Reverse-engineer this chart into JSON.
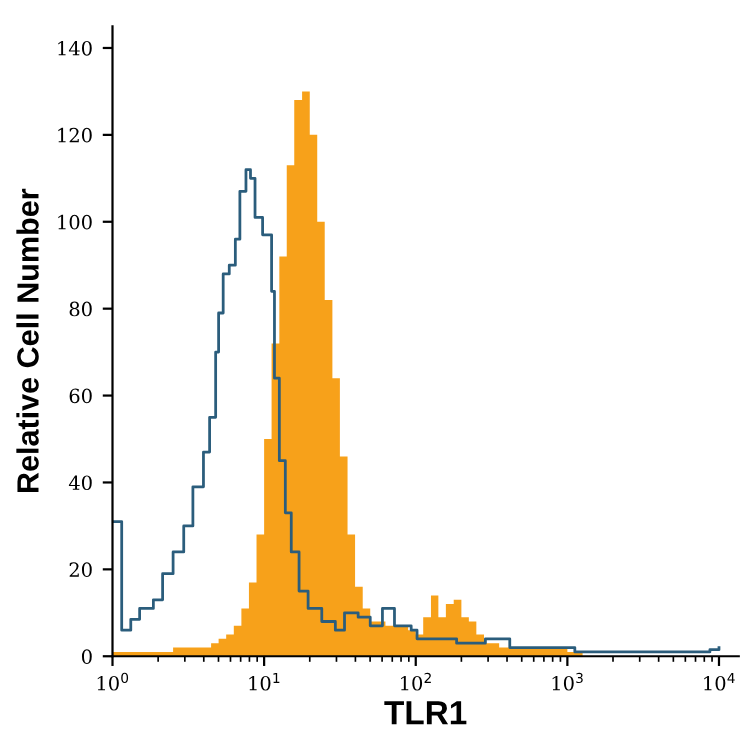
{
  "chart_data": {
    "type": "histogram",
    "xlabel": "TLR1",
    "ylabel": "Relative Cell Number",
    "log": "x",
    "xlim": [
      1,
      13500
    ],
    "ylim": [
      0,
      145
    ],
    "xticks": [
      {
        "value": 1,
        "label": "10$^{0}$"
      },
      {
        "value": 10,
        "label": "10$^{1}$"
      },
      {
        "value": 100,
        "label": "10$^{2}$"
      },
      {
        "value": 1000,
        "label": "10$^{3}$"
      },
      {
        "value": 10000,
        "label": "10$^{4}$"
      }
    ],
    "yticks": [
      0,
      20,
      40,
      60,
      80,
      100,
      120,
      140
    ],
    "grid": false,
    "legend": false,
    "series": [
      {
        "color": "#f7a11a",
        "bins": [
          1,
          1.12,
          1.26,
          1.41,
          1.58,
          1.78,
          2,
          2.24,
          2.51,
          2.82,
          3.16,
          3.55,
          3.98,
          4.47,
          5.01,
          5.62,
          6.31,
          7.08,
          7.94,
          8.91,
          10,
          11.2,
          12.6,
          14.1,
          15.8,
          17.8,
          20,
          22.4,
          25.1,
          28.2,
          31.6,
          35.5,
          39.8,
          44.7,
          50.1,
          56.2,
          63.1,
          70.8,
          79.4,
          89.1,
          100,
          112,
          126,
          141,
          158,
          178,
          200,
          224,
          251,
          282,
          316,
          355,
          398,
          447,
          501,
          562,
          631,
          708,
          794,
          891,
          1000,
          1120,
          1260
        ],
        "values": [
          1,
          1,
          1,
          1,
          1,
          1,
          1,
          1,
          2,
          2,
          2,
          2,
          2,
          3,
          4,
          5,
          7,
          11,
          17,
          28,
          50,
          72,
          92,
          113,
          128,
          130,
          120,
          100,
          82,
          64,
          46,
          28,
          16,
          11,
          8,
          8,
          7,
          7,
          7,
          6,
          5,
          9,
          14,
          9,
          12,
          13,
          9,
          8,
          5,
          3,
          3,
          2,
          2,
          2,
          2,
          2,
          2,
          2,
          2,
          2,
          1,
          1
        ]
      },
      {
        "type": "step",
        "color": "#2b5d7c",
        "x": [
          1,
          1.15,
          1.32,
          1.51,
          1.86,
          2.14,
          2.51,
          2.95,
          3.39,
          3.98,
          4.37,
          4.79,
          5.01,
          5.37,
          5.89,
          6.46,
          6.92,
          7.59,
          8.13,
          8.71,
          9.77,
          10.7,
          11.2,
          11.7,
          12.6,
          13.8,
          15.1,
          17.0,
          19.5,
          24.0,
          29.5,
          33.9,
          41.7,
          50.1,
          60.3,
          72.4,
          93.3,
          102,
          138,
          186,
          288,
          417,
          912,
          1120,
          6760,
          8710,
          10000
        ],
        "values": [
          31,
          6,
          8.5,
          11,
          13,
          19,
          24,
          30,
          39,
          47,
          55,
          70,
          79,
          88,
          90,
          96,
          107,
          112,
          110,
          101,
          97,
          97,
          84,
          64,
          45,
          33,
          24,
          15,
          11,
          8,
          6,
          10,
          9,
          7,
          11,
          7,
          6,
          4,
          4,
          3,
          4,
          2,
          2,
          1,
          1,
          1.5,
          2
        ]
      }
    ]
  }
}
